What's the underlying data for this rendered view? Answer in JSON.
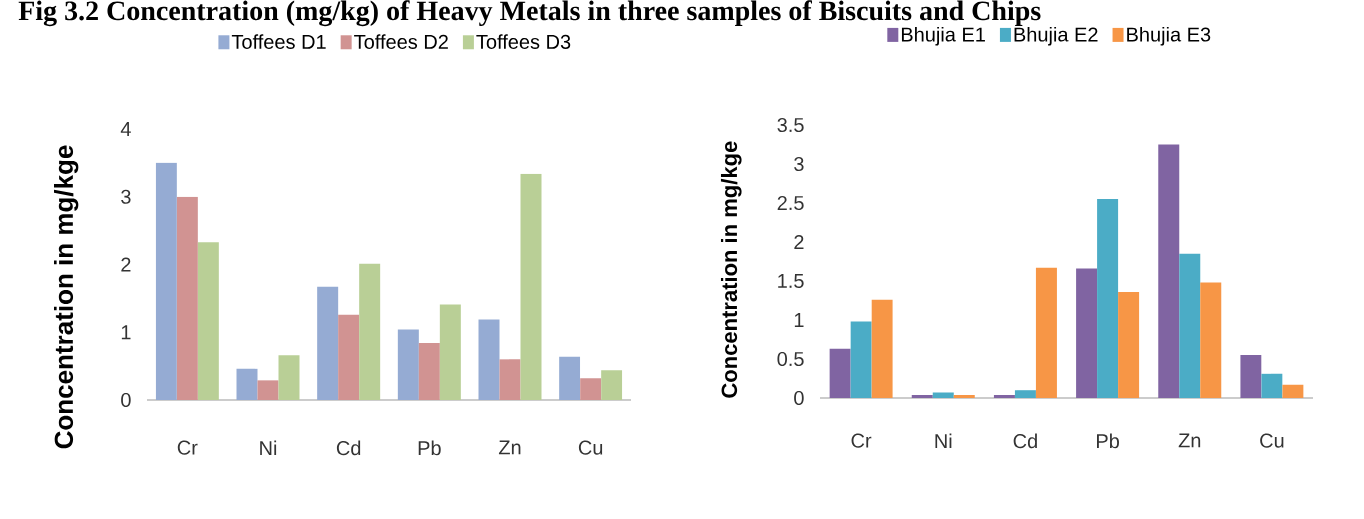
{
  "chart_data": [
    {
      "type": "bar",
      "title": "Fig 3.2 Concentration (mg/kg) of Heavy Metals in three samples of Biscuits and Chips",
      "ylabel": "Concentration in mg/kge",
      "categories": [
        "Cr",
        "Ni",
        "Cd",
        "Pb",
        "Zn",
        "Cu"
      ],
      "series": [
        {
          "name": "Toffees D1",
          "color": "#95abd3",
          "values": [
            3.5,
            0.46,
            1.67,
            1.04,
            1.19,
            0.64
          ]
        },
        {
          "name": "Toffees D2",
          "color": "#d19392",
          "values": [
            3.0,
            0.29,
            1.26,
            0.84,
            0.6,
            0.32
          ]
        },
        {
          "name": "Toffees D3",
          "color": "#b9cf96",
          "values": [
            2.33,
            0.66,
            2.01,
            1.41,
            3.34,
            0.44
          ]
        }
      ],
      "ylim": [
        0,
        4
      ],
      "yticks": [
        0,
        1,
        2,
        3,
        4
      ],
      "legend": "top"
    },
    {
      "type": "bar",
      "ylabel": "Concentration in mg/kge",
      "categories": [
        "Cr",
        "Ni",
        "Cd",
        "Pb",
        "Zn",
        "Cu"
      ],
      "series": [
        {
          "name": "Bhujia E1",
          "color": "#8064a2",
          "values": [
            0.63,
            0.04,
            0.04,
            1.66,
            3.25,
            0.55
          ]
        },
        {
          "name": "Bhujia E2",
          "color": "#4bacc6",
          "values": [
            0.98,
            0.07,
            0.1,
            2.55,
            1.85,
            0.31
          ]
        },
        {
          "name": "Bhujia E3",
          "color": "#f79646",
          "values": [
            1.26,
            0.04,
            1.67,
            1.36,
            1.48,
            0.17
          ]
        }
      ],
      "ylim": [
        0,
        3.5
      ],
      "yticks": [
        0,
        0.5,
        1,
        1.5,
        2,
        2.5,
        3,
        3.5
      ],
      "legend": "top"
    }
  ]
}
